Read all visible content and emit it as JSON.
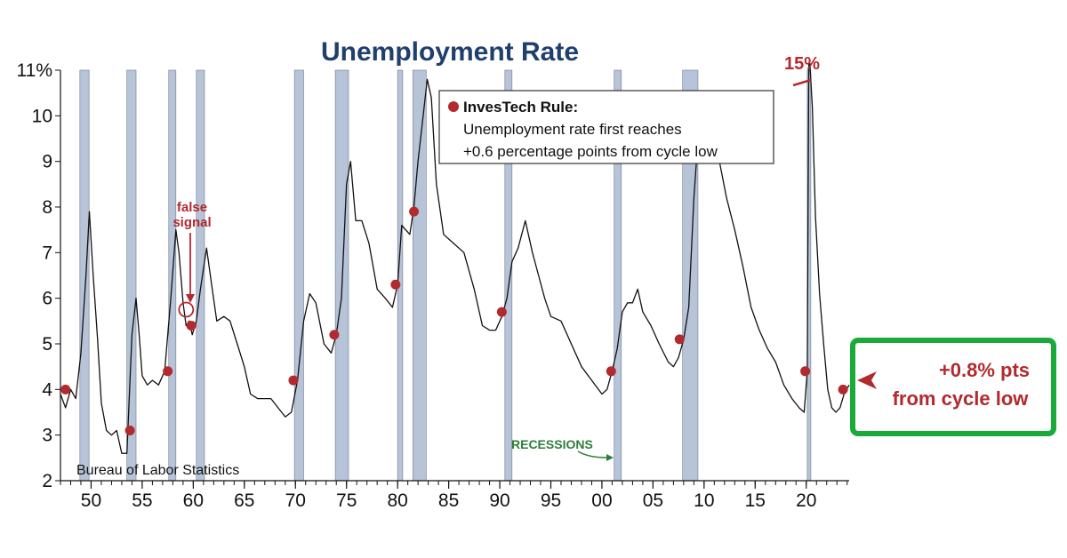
{
  "chart_data": {
    "type": "line",
    "title": "Unemployment Rate",
    "ylim": [
      2,
      11
    ],
    "y_ticks": [
      "2",
      "3",
      "4",
      "5",
      "6",
      "7",
      "8",
      "9",
      "10",
      "11%"
    ],
    "x_ticks": [
      "50",
      "55",
      "60",
      "65",
      "70",
      "75",
      "80",
      "85",
      "90",
      "95",
      "00",
      "05",
      "10",
      "15",
      "20"
    ],
    "x_tick_years": [
      1950,
      1955,
      1960,
      1965,
      1970,
      1975,
      1980,
      1985,
      1990,
      1995,
      2000,
      2005,
      2010,
      2015,
      2020
    ],
    "xlim": [
      1947.0,
      2024.2
    ],
    "series": [
      {
        "x": [
          1947.0,
          1947.5,
          1948.0,
          1948.5,
          1949.0,
          1949.5,
          1949.83,
          1950.2,
          1950.6,
          1951.0,
          1951.5,
          1952.0,
          1952.5,
          1953.0,
          1953.5,
          1954.0,
          1954.4,
          1954.7,
          1955.0,
          1955.5,
          1956.0,
          1956.6,
          1957.2,
          1957.8,
          1958.3,
          1958.6,
          1959.0,
          1959.3,
          1959.6,
          1959.9,
          1960.3,
          1960.7,
          1961.3,
          1961.8,
          1962.3,
          1963.0,
          1963.6,
          1964.3,
          1965.0,
          1965.6,
          1966.3,
          1967.0,
          1967.6,
          1968.3,
          1969.0,
          1969.6,
          1970.2,
          1970.8,
          1971.4,
          1972.0,
          1972.8,
          1973.5,
          1974.0,
          1974.5,
          1975.0,
          1975.4,
          1975.9,
          1976.5,
          1977.2,
          1978.0,
          1978.8,
          1979.5,
          1980.0,
          1980.4,
          1980.8,
          1981.2,
          1981.6,
          1982.0,
          1982.5,
          1982.9,
          1983.3,
          1983.8,
          1984.5,
          1985.5,
          1986.5,
          1987.5,
          1988.3,
          1989.0,
          1989.6,
          1990.2,
          1990.7,
          1991.2,
          1991.8,
          1992.5,
          1993.2,
          1993.8,
          1994.4,
          1995.0,
          1996.0,
          1997.0,
          1998.0,
          1999.0,
          2000.0,
          2000.5,
          2001.0,
          2001.5,
          2002.0,
          2002.5,
          2003.0,
          2003.5,
          2004.0,
          2004.8,
          2005.6,
          2006.5,
          2007.0,
          2007.5,
          2008.0,
          2008.5,
          2009.0,
          2009.4,
          2009.8,
          2010.3,
          2010.8,
          2011.5,
          2012.2,
          2013.0,
          2013.8,
          2014.6,
          2015.4,
          2016.2,
          2017.0,
          2017.8,
          2018.6,
          2019.3,
          2019.8,
          2020.1,
          2020.25,
          2020.35,
          2020.6,
          2020.9,
          2021.3,
          2021.7,
          2022.1,
          2022.5,
          2022.9,
          2023.3,
          2023.7,
          2024.2
        ],
        "values": [
          3.9,
          3.6,
          4.0,
          3.8,
          4.8,
          6.5,
          7.9,
          6.5,
          5.2,
          3.7,
          3.1,
          3.0,
          3.1,
          2.6,
          2.6,
          5.2,
          6.0,
          5.2,
          4.3,
          4.1,
          4.2,
          4.1,
          4.4,
          6.0,
          7.5,
          7.0,
          5.9,
          5.4,
          5.5,
          5.2,
          5.5,
          6.2,
          7.1,
          6.3,
          5.5,
          5.6,
          5.5,
          5.0,
          4.5,
          3.9,
          3.8,
          3.8,
          3.8,
          3.6,
          3.4,
          3.5,
          4.2,
          5.5,
          6.1,
          5.9,
          5.0,
          4.8,
          5.2,
          6.0,
          8.5,
          9.0,
          7.7,
          7.7,
          7.2,
          6.2,
          6.0,
          5.8,
          6.3,
          7.6,
          7.5,
          7.4,
          8.0,
          9.0,
          10.0,
          10.8,
          10.4,
          8.5,
          7.4,
          7.2,
          7.0,
          6.2,
          5.4,
          5.3,
          5.3,
          5.6,
          6.0,
          6.8,
          7.1,
          7.7,
          7.0,
          6.5,
          6.0,
          5.6,
          5.5,
          5.0,
          4.5,
          4.2,
          3.9,
          4.0,
          4.4,
          4.9,
          5.7,
          5.9,
          5.9,
          6.2,
          5.7,
          5.4,
          5.0,
          4.6,
          4.5,
          4.7,
          5.1,
          5.8,
          8.2,
          9.5,
          10.0,
          9.9,
          9.6,
          9.0,
          8.2,
          7.5,
          6.7,
          5.8,
          5.3,
          4.9,
          4.6,
          4.1,
          3.8,
          3.6,
          3.5,
          4.4,
          14.8,
          13.3,
          10.2,
          7.8,
          6.1,
          5.0,
          4.0,
          3.6,
          3.5,
          3.6,
          3.9,
          4.1
        ]
      }
    ],
    "recessions": [
      [
        1948.9,
        1949.8
      ],
      [
        1953.5,
        1954.4
      ],
      [
        1957.6,
        1958.3
      ],
      [
        1960.3,
        1961.1
      ],
      [
        1969.9,
        1970.8
      ],
      [
        1973.9,
        1975.2
      ],
      [
        1980.0,
        1980.5
      ],
      [
        1981.5,
        1982.8
      ],
      [
        1990.5,
        1991.2
      ],
      [
        2001.2,
        2001.9
      ],
      [
        2007.9,
        2009.4
      ],
      [
        2020.1,
        2020.3
      ]
    ],
    "signals": [
      {
        "x": 1947.5,
        "y": 4.0
      },
      {
        "x": 1953.8,
        "y": 3.1
      },
      {
        "x": 1957.5,
        "y": 4.4
      },
      {
        "x": 1959.8,
        "y": 5.4
      },
      {
        "x": 1969.8,
        "y": 4.2
      },
      {
        "x": 1973.8,
        "y": 5.2
      },
      {
        "x": 1979.8,
        "y": 6.3
      },
      {
        "x": 1981.6,
        "y": 7.9
      },
      {
        "x": 1990.2,
        "y": 5.7
      },
      {
        "x": 2000.9,
        "y": 4.4
      },
      {
        "x": 2007.6,
        "y": 5.1
      },
      {
        "x": 2019.9,
        "y": 4.4
      },
      {
        "x": 2023.6,
        "y": 4.0
      }
    ],
    "false_signal_point": {
      "x": 1959.3,
      "y": 5.75
    },
    "peak_label": "15%",
    "annotations": {
      "false_signal_line1": "false",
      "false_signal_line2": "signal",
      "recessions_label": "RECESSIONS",
      "source": "Bureau of Labor Statistics"
    },
    "legend": {
      "heading": "InvesTech Rule:",
      "line1": "Unemployment rate first reaches",
      "line2": "+0.6 percentage points from cycle low"
    }
  },
  "callout": {
    "line1": "+0.8% pts",
    "line2": "from cycle low"
  },
  "colors": {
    "title": "#1f3f6e",
    "recession_bar": "#b7c3d6",
    "line": "#111111",
    "signal_dot": "#b22a2e",
    "callout_border": "#1aaa3a",
    "green_text": "#2e7d3a"
  }
}
